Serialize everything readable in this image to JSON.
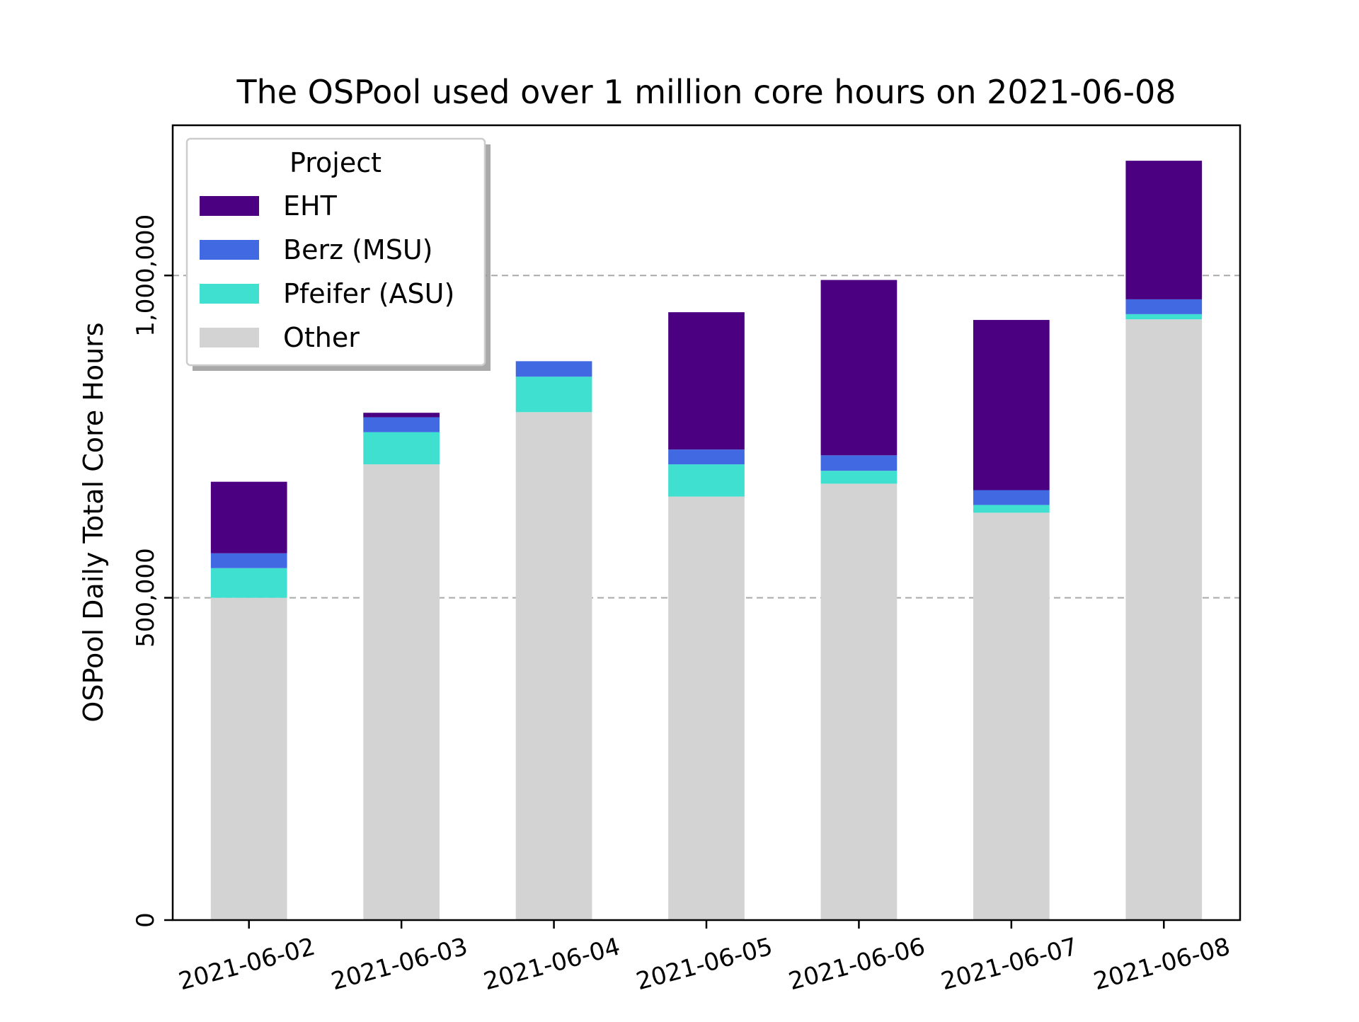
{
  "chart_data": {
    "type": "bar",
    "stacked": true,
    "title": "The OSPool used over 1 million core hours on 2021-06-08",
    "xlabel": "",
    "ylabel": "OSPool Daily Total Core Hours",
    "categories": [
      "2021-06-02",
      "2021-06-03",
      "2021-06-04",
      "2021-06-05",
      "2021-06-06",
      "2021-06-07",
      "2021-06-08"
    ],
    "series": [
      {
        "name": "Other",
        "color": "#d3d3d3",
        "values": [
          500000,
          707000,
          788000,
          657000,
          677000,
          632000,
          932000
        ]
      },
      {
        "name": "Pfeifer (ASU)",
        "color": "#40e0d0",
        "values": [
          46000,
          50000,
          55000,
          50000,
          20000,
          12000,
          8000
        ]
      },
      {
        "name": "Berz (MSU)",
        "color": "#4169e1",
        "values": [
          23000,
          23000,
          24000,
          23000,
          24000,
          23000,
          23000
        ]
      },
      {
        "name": "EHT",
        "color": "#4b0082",
        "values": [
          111000,
          7000,
          0,
          213000,
          272000,
          264000,
          215000
        ]
      }
    ],
    "ylim": [
      0,
      1233000
    ],
    "yticks": [
      0,
      500000,
      1000000
    ],
    "ytick_labels": [
      "0",
      "500,000",
      "1,000,000"
    ],
    "grid": {
      "axis": "y",
      "style": "dashed",
      "lines_at": [
        500000,
        1000000
      ]
    },
    "legend": {
      "title": "Project",
      "placement": "upper-left",
      "entries": [
        "EHT",
        "Berz (MSU)",
        "Pfeifer (ASU)",
        "Other"
      ]
    }
  }
}
